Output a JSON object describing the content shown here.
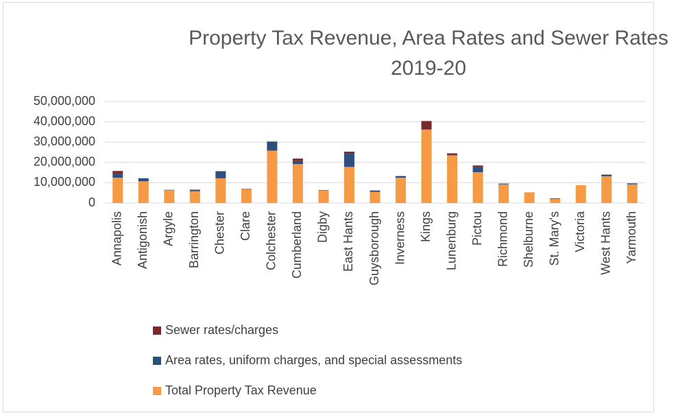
{
  "chart_data": {
    "type": "stacked_bar",
    "title": "Property Tax Revenue, Area Rates and Sewer Rates 2019-20",
    "categories": [
      "Annapolis",
      "Antigonish",
      "Argyle",
      "Barrington",
      "Chester",
      "Clare",
      "Colchester",
      "Cumberland",
      "Digby",
      "East Hants",
      "Guysborough",
      "Inverness",
      "Kings",
      "Lunenburg",
      "Pictou",
      "Richmond",
      "Shelburne",
      "St. Mary's",
      "Victoria",
      "West Hants",
      "Yarmouth"
    ],
    "series": [
      {
        "name": "Total Property Tax Revenue",
        "color": "#f79a46",
        "values": [
          12500000,
          10700000,
          6300000,
          5800000,
          12200000,
          6800000,
          25800000,
          19200000,
          6200000,
          17800000,
          5500000,
          12500000,
          36200000,
          23500000,
          15200000,
          9200000,
          5300000,
          2000000,
          8800000,
          13200000,
          9200000
        ]
      },
      {
        "name": "Area rates, uniform charges, and special assessments",
        "color": "#2e4e7e",
        "values": [
          2000000,
          1500000,
          200000,
          500000,
          3500000,
          200000,
          4500000,
          1500000,
          200000,
          6500000,
          700000,
          800000,
          0,
          500000,
          2500000,
          400000,
          0,
          300000,
          0,
          300000,
          500000
        ]
      },
      {
        "name": "Sewer rates/charges",
        "color": "#7b2a2a",
        "values": [
          1300000,
          0,
          0,
          300000,
          0,
          0,
          0,
          1200000,
          0,
          1000000,
          0,
          0,
          4200000,
          500000,
          800000,
          0,
          0,
          0,
          0,
          500000,
          0
        ]
      }
    ],
    "ylim": [
      0,
      50000000
    ],
    "yticks": [
      0,
      {
        "value": 10000000,
        "label": "10,000,000"
      },
      {
        "value": 20000000,
        "label": "20,000,000"
      },
      {
        "value": 30000000,
        "label": "30,000,000"
      },
      {
        "value": 40000000,
        "label": "40,000,000"
      },
      {
        "value": 50000000,
        "label": "50,000,000"
      }
    ],
    "grid": true
  }
}
